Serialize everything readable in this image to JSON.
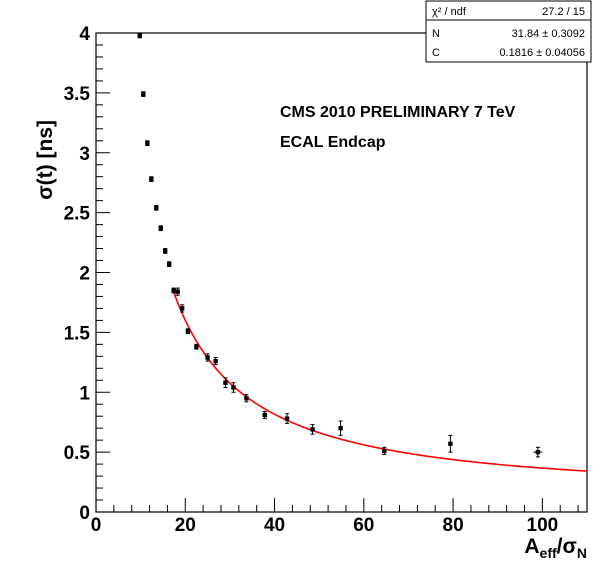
{
  "chart_data": {
    "type": "scatter",
    "xlabel": "A",
    "xlabel_sub1": "eff",
    "xlabel_sep": "/σ",
    "xlabel_sub2": "N",
    "ylabel": "σ(t) [ns]",
    "xlim": [
      0,
      110
    ],
    "ylim": [
      0,
      4
    ],
    "x_ticks": [
      0,
      20,
      40,
      60,
      80,
      100
    ],
    "y_ticks": [
      0,
      0.5,
      1,
      1.5,
      2,
      2.5,
      3,
      3.5,
      4
    ],
    "y_tick_labels": [
      "0",
      "0.5",
      "1",
      "1.5",
      "2",
      "2.5",
      "3",
      "3.5",
      "4"
    ],
    "annotations": [
      "CMS 2010 PRELIMINARY 7 TeV",
      "ECAL Endcap"
    ],
    "colors": {
      "fit": "#ff0000",
      "points": "#000000"
    },
    "points": [
      {
        "x": 9.8,
        "y": 3.98,
        "yerr": 0.02
      },
      {
        "x": 10.6,
        "y": 3.49,
        "yerr": 0.02
      },
      {
        "x": 11.5,
        "y": 3.08,
        "yerr": 0.02
      },
      {
        "x": 12.4,
        "y": 2.78,
        "yerr": 0.02
      },
      {
        "x": 13.5,
        "y": 2.54,
        "yerr": 0.02
      },
      {
        "x": 14.5,
        "y": 2.37,
        "yerr": 0.02
      },
      {
        "x": 15.5,
        "y": 2.18,
        "yerr": 0.02
      },
      {
        "x": 16.4,
        "y": 2.07,
        "yerr": 0.02
      },
      {
        "x": 17.4,
        "y": 1.85,
        "yerr": 0.02
      },
      {
        "x": 18.3,
        "y": 1.84,
        "yerr": 0.03
      },
      {
        "x": 19.3,
        "y": 1.7,
        "yerr": 0.03
      },
      {
        "x": 20.6,
        "y": 1.51,
        "yerr": 0.02
      },
      {
        "x": 22.5,
        "y": 1.38,
        "yerr": 0.02
      },
      {
        "x": 25.0,
        "y": 1.29,
        "yerr": 0.03
      },
      {
        "x": 26.8,
        "y": 1.26,
        "yerr": 0.03
      },
      {
        "x": 29.0,
        "y": 1.08,
        "yerr": 0.04
      },
      {
        "x": 30.8,
        "y": 1.04,
        "yerr": 0.04
      },
      {
        "x": 33.7,
        "y": 0.95,
        "yerr": 0.03
      },
      {
        "x": 37.8,
        "y": 0.81,
        "yerr": 0.03
      },
      {
        "x": 42.8,
        "y": 0.78,
        "yerr": 0.04
      },
      {
        "x": 48.5,
        "y": 0.69,
        "yerr": 0.04
      },
      {
        "x": 54.8,
        "y": 0.7,
        "yerr": 0.06
      },
      {
        "x": 64.6,
        "y": 0.51,
        "yerr": 0.03
      },
      {
        "x": 79.4,
        "y": 0.57,
        "yerr": 0.07
      },
      {
        "x": 99.0,
        "y": 0.5,
        "yerr": 0.04,
        "xerr": 1.0
      }
    ],
    "fit": {
      "model": "sqrt((N/x)^2 + C^2)",
      "N": 31.84,
      "C": 0.1816,
      "x_range": [
        17.5,
        110
      ]
    },
    "stats_box": [
      {
        "label": "χ² / ndf",
        "value": "27.2 / 15"
      },
      {
        "label": "N",
        "value": "31.84 ± 0.3092"
      },
      {
        "label": "C",
        "value": "0.1816 ± 0.04056"
      }
    ]
  }
}
